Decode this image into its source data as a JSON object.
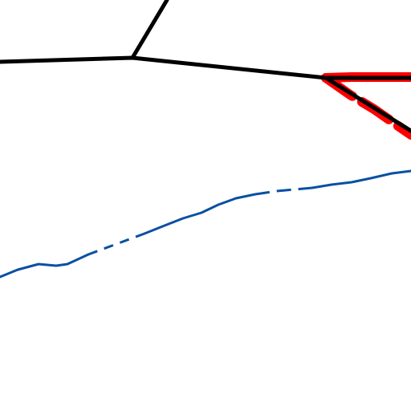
{
  "map": {
    "background_color": "#ffffff",
    "features": {
      "black_road_color": "#000000",
      "highlight_route_color": "#ff0000",
      "blue_line_color": "#0a4fa3"
    }
  }
}
